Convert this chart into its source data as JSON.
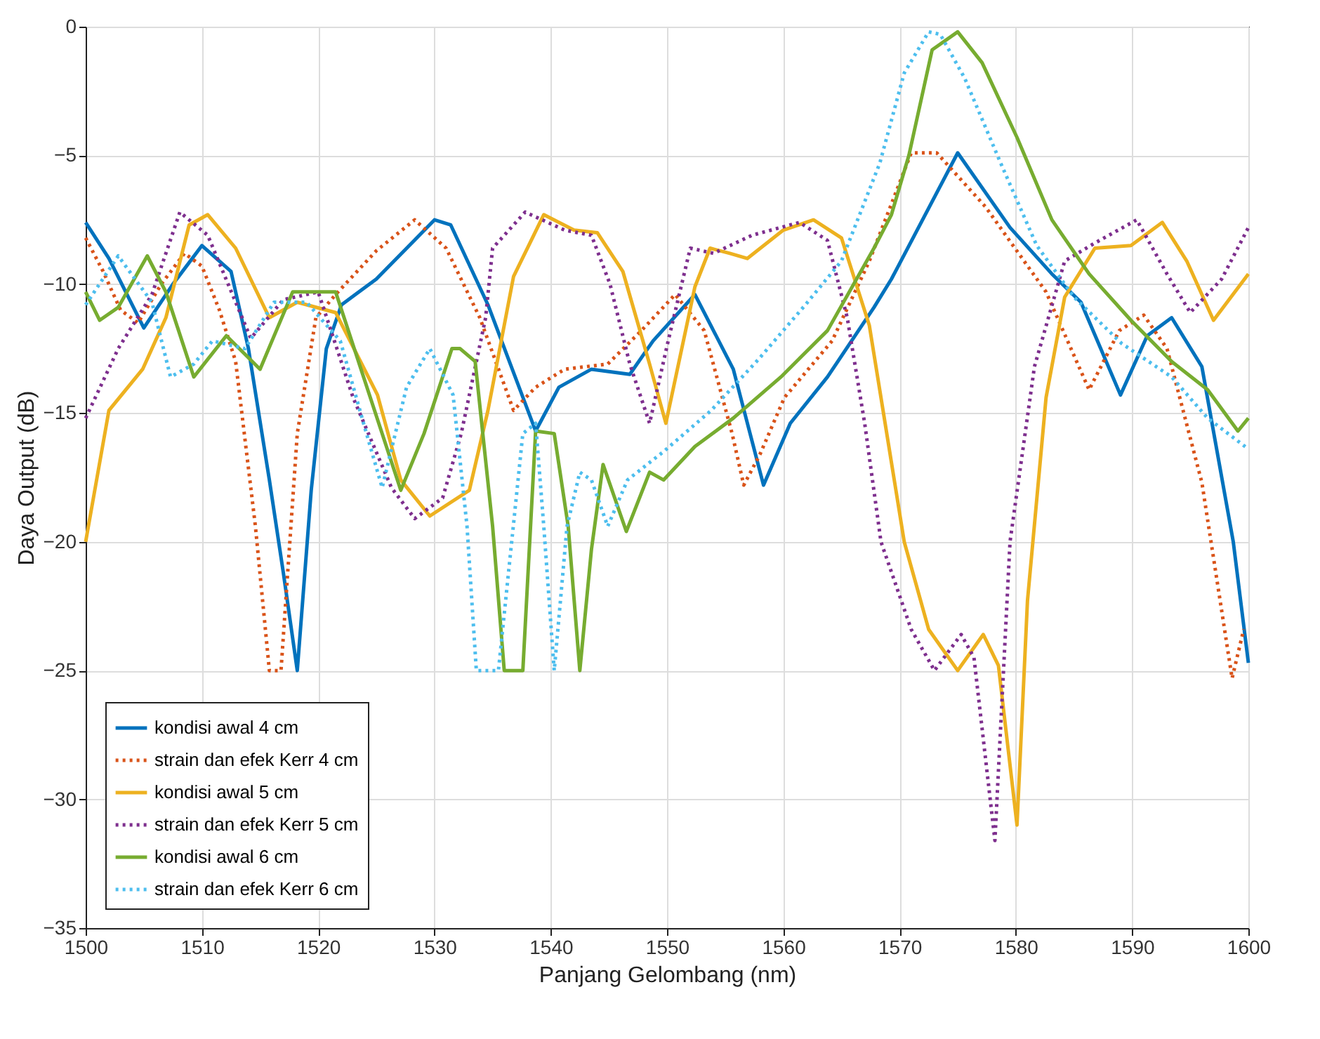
{
  "chart_data": {
    "type": "line",
    "xlabel": "Panjang Gelombang (nm)",
    "ylabel": "Daya Output (dB)",
    "xlim": [
      1500,
      1600
    ],
    "ylim": [
      -35,
      0
    ],
    "xticks": [
      1500,
      1510,
      1520,
      1530,
      1540,
      1550,
      1560,
      1570,
      1580,
      1590,
      1600
    ],
    "yticks": [
      -35,
      -30,
      -25,
      -20,
      -15,
      -10,
      -5,
      0
    ],
    "grid": true,
    "legend": "bottom left",
    "marker": "none",
    "series": [
      {
        "name": "kondisi awal 4 cm",
        "color": "#0072bd",
        "line_style": "solid",
        "x": [
          1500,
          1502,
          1505,
          1507.5,
          1510,
          1512.5,
          1514,
          1515.8,
          1517,
          1518.2,
          1519.4,
          1520.7,
          1522,
          1525,
          1530,
          1531.4,
          1534.6,
          1538.7,
          1540.7,
          1543.5,
          1546.8,
          1548.8,
          1552.4,
          1555.7,
          1558.3,
          1560.6,
          1563.8,
          1567.8,
          1569.3,
          1575,
          1579.5,
          1583.1,
          1585.6,
          1589,
          1591.3,
          1593.4,
          1596,
          1598.7,
          1600
        ],
        "values": [
          -7.6,
          -9,
          -11.7,
          -10,
          -8.5,
          -9.5,
          -12.5,
          -17.6,
          -21.2,
          -25,
          -18,
          -12.5,
          -10.8,
          -9.8,
          -7.5,
          -7.7,
          -10.8,
          -15.7,
          -14,
          -13.3,
          -13.5,
          -12.2,
          -10.4,
          -13.3,
          -17.8,
          -15.4,
          -13.6,
          -10.9,
          -9.8,
          -4.9,
          -7.8,
          -9.6,
          -10.7,
          -14.3,
          -12,
          -11.3,
          -13.2,
          -20,
          -24.7
        ]
      },
      {
        "name": "strain dan efek Kerr 4 cm",
        "color": "#d95319",
        "line_style": "dotted",
        "x": [
          1500,
          1501.5,
          1503,
          1504.5,
          1506.5,
          1508.5,
          1510,
          1511.5,
          1512.9,
          1514.6,
          1515.8,
          1516.8,
          1518.2,
          1519.8,
          1521.5,
          1525,
          1528.3,
          1531,
          1533.9,
          1536.8,
          1538.7,
          1541.2,
          1544.9,
          1547.8,
          1550.7,
          1553.2,
          1555.6,
          1556.6,
          1558,
          1560.1,
          1564.2,
          1567.4,
          1571,
          1573.2,
          1577.4,
          1582.6,
          1586.3,
          1588.9,
          1591,
          1593,
          1596,
          1598.6,
          1599.6
        ],
        "values": [
          -8.2,
          -9.5,
          -11,
          -11.5,
          -10,
          -8.8,
          -9.3,
          -11,
          -13,
          -19.4,
          -25,
          -25,
          -15.8,
          -11.3,
          -10.4,
          -8.7,
          -7.5,
          -8.6,
          -11.3,
          -14.9,
          -14,
          -13.3,
          -13.1,
          -11.8,
          -10.4,
          -11.8,
          -15.8,
          -17.8,
          -16.6,
          -14.4,
          -12.2,
          -9.1,
          -4.9,
          -4.9,
          -7,
          -10.3,
          -14.1,
          -11.8,
          -11.2,
          -12.5,
          -17.7,
          -25.3,
          -23.4
        ]
      },
      {
        "name": "kondisi awal 5 cm",
        "color": "#edb120",
        "line_style": "solid",
        "x": [
          1500,
          1502,
          1504.9,
          1506.9,
          1508.9,
          1510.5,
          1512.9,
          1515.8,
          1518.2,
          1521.5,
          1525.1,
          1527.1,
          1529.6,
          1533,
          1534.6,
          1536.8,
          1539.4,
          1542,
          1544,
          1546.2,
          1548.5,
          1549.9,
          1552.4,
          1553.7,
          1555.4,
          1556.9,
          1560,
          1562.6,
          1565,
          1567.4,
          1570.4,
          1572.5,
          1575,
          1577.2,
          1578.5,
          1580.1,
          1581,
          1582.6,
          1584.2,
          1586.8,
          1589.9,
          1592.6,
          1594.7,
          1597,
          1600
        ],
        "values": [
          -20,
          -14.9,
          -13.3,
          -11.3,
          -7.7,
          -7.3,
          -8.6,
          -11.3,
          -10.7,
          -11.1,
          -14.3,
          -17.6,
          -19,
          -18,
          -14.9,
          -9.7,
          -7.3,
          -7.9,
          -8,
          -9.5,
          -13.1,
          -15.4,
          -10.1,
          -8.6,
          -8.8,
          -9,
          -7.9,
          -7.5,
          -8.2,
          -11.6,
          -20,
          -23.4,
          -25,
          -23.6,
          -24.8,
          -31,
          -22.3,
          -14.4,
          -10.5,
          -8.6,
          -8.5,
          -7.6,
          -9.1,
          -11.4,
          -9.6
        ]
      },
      {
        "name": "strain dan efek Kerr 5 cm",
        "color": "#7e2f8e",
        "line_style": "dotted",
        "x": [
          1500,
          1502.8,
          1505.7,
          1508.1,
          1510.5,
          1514.2,
          1517,
          1520,
          1523,
          1526.3,
          1528.3,
          1530.7,
          1532.3,
          1534.4,
          1535,
          1537.8,
          1541.2,
          1543.5,
          1545.1,
          1546.8,
          1548.5,
          1550.1,
          1552,
          1554,
          1557.3,
          1561.4,
          1563.8,
          1565.5,
          1567,
          1568.4,
          1571,
          1573,
          1575.3,
          1576.4,
          1578.2,
          1579.5,
          1581.6,
          1584.2,
          1586.8,
          1590.4,
          1593,
          1595,
          1597.7,
          1600
        ],
        "values": [
          -15.2,
          -12.5,
          -10.4,
          -7.2,
          -8.1,
          -12.1,
          -10.6,
          -10.3,
          -14.4,
          -17.9,
          -19.1,
          -18.3,
          -15.8,
          -11.3,
          -8.6,
          -7.2,
          -7.9,
          -8.1,
          -10,
          -13.1,
          -15.4,
          -12.2,
          -8.6,
          -8.8,
          -8.1,
          -7.6,
          -8.3,
          -11.3,
          -15.4,
          -20,
          -23.4,
          -25,
          -23.6,
          -24.5,
          -31.6,
          -20,
          -13.2,
          -9.1,
          -8.4,
          -7.5,
          -9.6,
          -11.1,
          -9.8,
          -7.8
        ]
      },
      {
        "name": "kondisi awal 6 cm",
        "color": "#77ac30",
        "line_style": "solid",
        "x": [
          1500,
          1501.2,
          1502.8,
          1505.3,
          1506.9,
          1509.3,
          1512.1,
          1515,
          1517.8,
          1521.5,
          1523.9,
          1527.1,
          1529.1,
          1531.5,
          1532.2,
          1533.5,
          1535,
          1536,
          1537.6,
          1538.7,
          1540.3,
          1541.5,
          1542.5,
          1543.5,
          1544.5,
          1546.5,
          1548.5,
          1549.7,
          1552.4,
          1555.7,
          1559.8,
          1563.8,
          1567.8,
          1569.3,
          1570.8,
          1572.8,
          1575,
          1577.1,
          1580.1,
          1583.1,
          1586.3,
          1589.9,
          1593.4,
          1596.5,
          1599.1,
          1600
        ],
        "values": [
          -10.3,
          -11.4,
          -10.9,
          -8.9,
          -10.3,
          -13.6,
          -12,
          -13.3,
          -10.3,
          -10.3,
          -13.6,
          -18,
          -15.8,
          -12.5,
          -12.5,
          -13,
          -19.4,
          -25,
          -25,
          -15.7,
          -15.8,
          -19.4,
          -25,
          -20.3,
          -17,
          -19.6,
          -17.3,
          -17.6,
          -16.3,
          -15.2,
          -13.6,
          -11.8,
          -8.6,
          -7.3,
          -5,
          -0.9,
          -0.2,
          -1.4,
          -4.3,
          -7.5,
          -9.6,
          -11.4,
          -13,
          -14.1,
          -15.7,
          -15.2
        ]
      },
      {
        "name": "strain dan efek Kerr 6 cm",
        "color": "#4dbeee",
        "line_style": "dotted",
        "x": [
          1500,
          1502.8,
          1505.7,
          1507.3,
          1509.3,
          1510.9,
          1513.7,
          1516.2,
          1519,
          1521.9,
          1523.9,
          1525.5,
          1527.6,
          1529.6,
          1531.6,
          1532.8,
          1533.6,
          1535.5,
          1537.6,
          1538.7,
          1539.4,
          1540.3,
          1541.4,
          1542.5,
          1543.5,
          1544.9,
          1546.6,
          1549.7,
          1553.8,
          1557.9,
          1561.9,
          1565,
          1568.3,
          1570.4,
          1572.5,
          1573.5,
          1575.6,
          1578.7,
          1581.8,
          1585,
          1589.1,
          1593.4,
          1596.5,
          1600
        ],
        "values": [
          -10.8,
          -8.9,
          -10.7,
          -13.6,
          -13.1,
          -12.2,
          -12.5,
          -10.7,
          -10.7,
          -12.2,
          -15.4,
          -17.9,
          -14,
          -12.5,
          -14.3,
          -19.4,
          -25,
          -25,
          -15.8,
          -15.4,
          -19.4,
          -25,
          -19.4,
          -17.3,
          -17.6,
          -19.4,
          -17.6,
          -16.5,
          -14.9,
          -12.9,
          -10.8,
          -9.1,
          -5.3,
          -1.8,
          -0.2,
          -0.3,
          -2,
          -5.3,
          -8.5,
          -10.5,
          -12.3,
          -13.6,
          -15.2,
          -16.4
        ]
      }
    ]
  }
}
